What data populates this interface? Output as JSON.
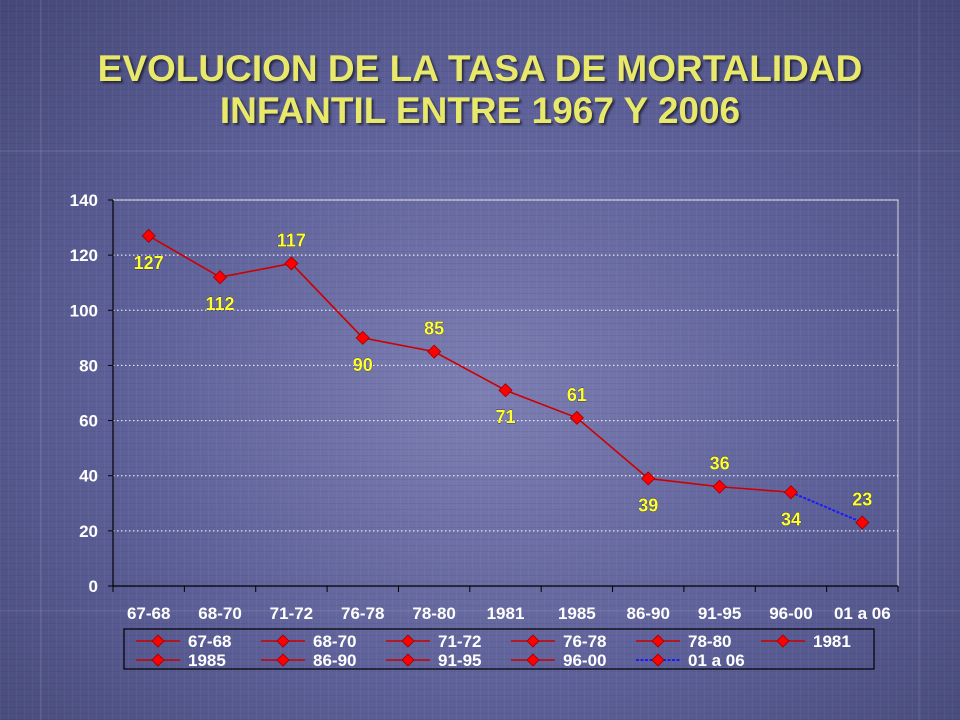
{
  "slide": {
    "title_line1": "EVOLUCION DE LA TASA DE MORTALIDAD",
    "title_line2": "INFANTIL ENTRE 1967 Y 2006"
  },
  "colors": {
    "title": "#e8e86b",
    "series_red": "#cc0000",
    "marker_red": "#ff0000",
    "series_blue": "#1a1aff",
    "data_label": "#ffff33",
    "axis_text": "#ffffff",
    "legend_box": "#000000"
  },
  "chart_data": {
    "type": "line",
    "title": "",
    "xlabel": "",
    "ylabel": "",
    "categories": [
      "67-68",
      "68-70",
      "71-72",
      "76-78",
      "78-80",
      "1981",
      "1985",
      "86-90",
      "91-95",
      "96-00",
      "01 a 06"
    ],
    "values": [
      127,
      112,
      117,
      90,
      85,
      71,
      61,
      39,
      36,
      34,
      23
    ],
    "data_labels": [
      "127",
      "112",
      "117",
      "90",
      "85",
      "71",
      "61",
      "39",
      "36",
      "34",
      "23"
    ],
    "ylim": [
      0,
      140
    ],
    "yticks": [
      0,
      20,
      40,
      60,
      80,
      100,
      120,
      140
    ],
    "grid": "horizontal dotted",
    "legend_position": "bottom",
    "legend": [
      "67-68",
      "68-70",
      "71-72",
      "76-78",
      "78-80",
      "1981",
      "1985",
      "86-90",
      "91-95",
      "96-00",
      "01 a 06"
    ],
    "marker": "diamond",
    "last_segment_color": "blue"
  }
}
